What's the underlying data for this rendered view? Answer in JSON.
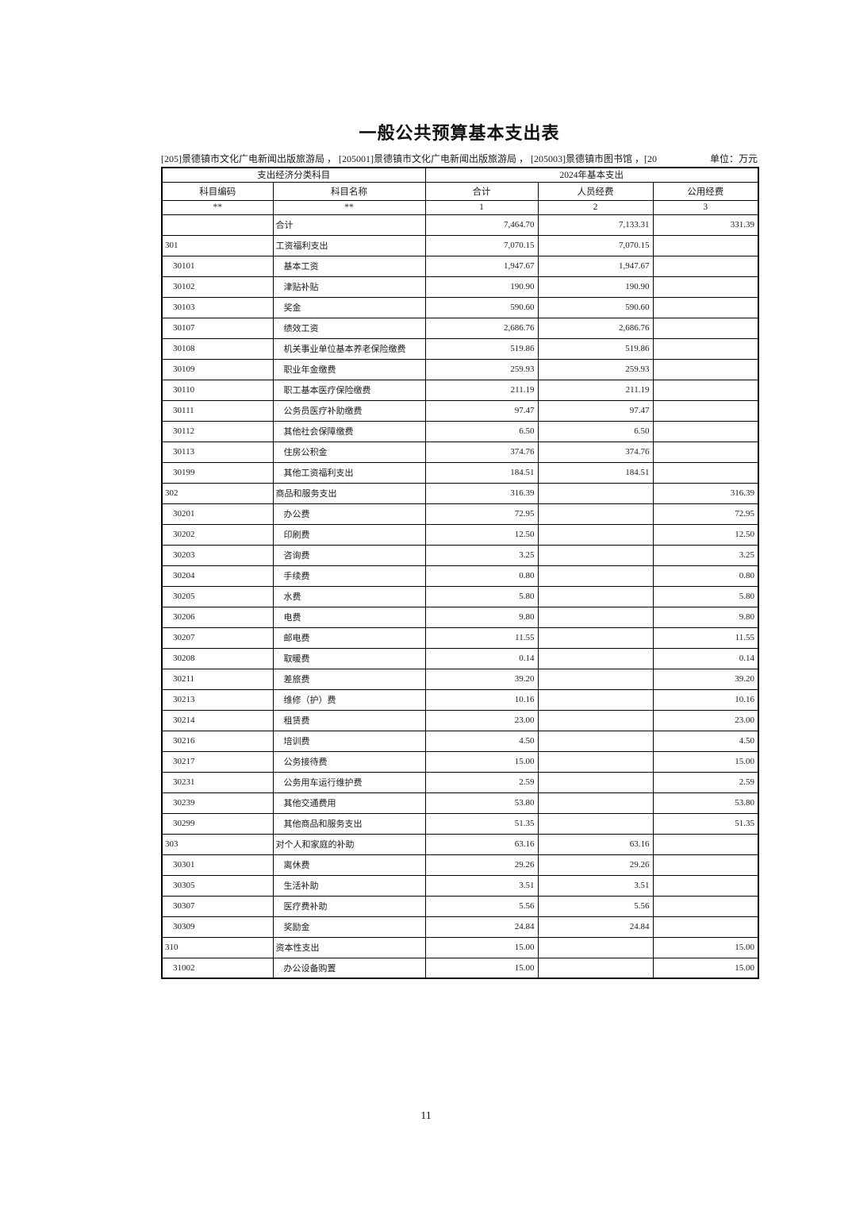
{
  "page": {
    "title": "一般公共预算基本支出表",
    "org_line": "[205]景德镇市文化广电新闻出版旅游局 ， [205001]景德镇市文化广电新闻出版旅游局 ， [205003]景德镇市图书馆 ，[20",
    "unit_label": "单位：万元",
    "page_number": "11"
  },
  "table": {
    "header": {
      "group_left": "支出经济分类科目",
      "group_right": "2024年基本支出",
      "columns": [
        "科目编码",
        "科目名称",
        "合计",
        "人员经费",
        "公用经费"
      ],
      "markers": [
        "**",
        "**",
        "1",
        "2",
        "3"
      ]
    },
    "rows": [
      {
        "code": "",
        "name": "合计",
        "total": "7,464.70",
        "personnel": "7,133.31",
        "public": "331.39",
        "level": 0
      },
      {
        "code": "301",
        "name": "工资福利支出",
        "total": "7,070.15",
        "personnel": "7,070.15",
        "public": "",
        "level": 0
      },
      {
        "code": "30101",
        "name": "基本工资",
        "total": "1,947.67",
        "personnel": "1,947.67",
        "public": "",
        "level": 1
      },
      {
        "code": "30102",
        "name": "津贴补贴",
        "total": "190.90",
        "personnel": "190.90",
        "public": "",
        "level": 1
      },
      {
        "code": "30103",
        "name": "奖金",
        "total": "590.60",
        "personnel": "590.60",
        "public": "",
        "level": 1
      },
      {
        "code": "30107",
        "name": "绩效工资",
        "total": "2,686.76",
        "personnel": "2,686.76",
        "public": "",
        "level": 1
      },
      {
        "code": "30108",
        "name": "机关事业单位基本养老保险缴费",
        "total": "519.86",
        "personnel": "519.86",
        "public": "",
        "level": 1
      },
      {
        "code": "30109",
        "name": "职业年金缴费",
        "total": "259.93",
        "personnel": "259.93",
        "public": "",
        "level": 1
      },
      {
        "code": "30110",
        "name": "职工基本医疗保险缴费",
        "total": "211.19",
        "personnel": "211.19",
        "public": "",
        "level": 1
      },
      {
        "code": "30111",
        "name": "公务员医疗补助缴费",
        "total": "97.47",
        "personnel": "97.47",
        "public": "",
        "level": 1
      },
      {
        "code": "30112",
        "name": "其他社会保障缴费",
        "total": "6.50",
        "personnel": "6.50",
        "public": "",
        "level": 1
      },
      {
        "code": "30113",
        "name": "住房公积金",
        "total": "374.76",
        "personnel": "374.76",
        "public": "",
        "level": 1
      },
      {
        "code": "30199",
        "name": "其他工资福利支出",
        "total": "184.51",
        "personnel": "184.51",
        "public": "",
        "level": 1
      },
      {
        "code": "302",
        "name": "商品和服务支出",
        "total": "316.39",
        "personnel": "",
        "public": "316.39",
        "level": 0
      },
      {
        "code": "30201",
        "name": "办公费",
        "total": "72.95",
        "personnel": "",
        "public": "72.95",
        "level": 1
      },
      {
        "code": "30202",
        "name": "印刷费",
        "total": "12.50",
        "personnel": "",
        "public": "12.50",
        "level": 1
      },
      {
        "code": "30203",
        "name": "咨询费",
        "total": "3.25",
        "personnel": "",
        "public": "3.25",
        "level": 1
      },
      {
        "code": "30204",
        "name": "手续费",
        "total": "0.80",
        "personnel": "",
        "public": "0.80",
        "level": 1
      },
      {
        "code": "30205",
        "name": "水费",
        "total": "5.80",
        "personnel": "",
        "public": "5.80",
        "level": 1
      },
      {
        "code": "30206",
        "name": "电费",
        "total": "9.80",
        "personnel": "",
        "public": "9.80",
        "level": 1
      },
      {
        "code": "30207",
        "name": "邮电费",
        "total": "11.55",
        "personnel": "",
        "public": "11.55",
        "level": 1
      },
      {
        "code": "30208",
        "name": "取暖费",
        "total": "0.14",
        "personnel": "",
        "public": "0.14",
        "level": 1
      },
      {
        "code": "30211",
        "name": "差旅费",
        "total": "39.20",
        "personnel": "",
        "public": "39.20",
        "level": 1
      },
      {
        "code": "30213",
        "name": "维修（护）费",
        "total": "10.16",
        "personnel": "",
        "public": "10.16",
        "level": 1
      },
      {
        "code": "30214",
        "name": "租赁费",
        "total": "23.00",
        "personnel": "",
        "public": "23.00",
        "level": 1
      },
      {
        "code": "30216",
        "name": "培训费",
        "total": "4.50",
        "personnel": "",
        "public": "4.50",
        "level": 1
      },
      {
        "code": "30217",
        "name": "公务接待费",
        "total": "15.00",
        "personnel": "",
        "public": "15.00",
        "level": 1
      },
      {
        "code": "30231",
        "name": "公务用车运行维护费",
        "total": "2.59",
        "personnel": "",
        "public": "2.59",
        "level": 1
      },
      {
        "code": "30239",
        "name": "其他交通费用",
        "total": "53.80",
        "personnel": "",
        "public": "53.80",
        "level": 1
      },
      {
        "code": "30299",
        "name": "其他商品和服务支出",
        "total": "51.35",
        "personnel": "",
        "public": "51.35",
        "level": 1
      },
      {
        "code": "303",
        "name": "对个人和家庭的补助",
        "total": "63.16",
        "personnel": "63.16",
        "public": "",
        "level": 0
      },
      {
        "code": "30301",
        "name": "离休费",
        "total": "29.26",
        "personnel": "29.26",
        "public": "",
        "level": 1
      },
      {
        "code": "30305",
        "name": "生活补助",
        "total": "3.51",
        "personnel": "3.51",
        "public": "",
        "level": 1
      },
      {
        "code": "30307",
        "name": "医疗费补助",
        "total": "5.56",
        "personnel": "5.56",
        "public": "",
        "level": 1
      },
      {
        "code": "30309",
        "name": "奖励金",
        "total": "24.84",
        "personnel": "24.84",
        "public": "",
        "level": 1
      },
      {
        "code": "310",
        "name": "资本性支出",
        "total": "15.00",
        "personnel": "",
        "public": "15.00",
        "level": 0
      },
      {
        "code": "31002",
        "name": "办公设备购置",
        "total": "15.00",
        "personnel": "",
        "public": "15.00",
        "level": 1
      }
    ]
  }
}
